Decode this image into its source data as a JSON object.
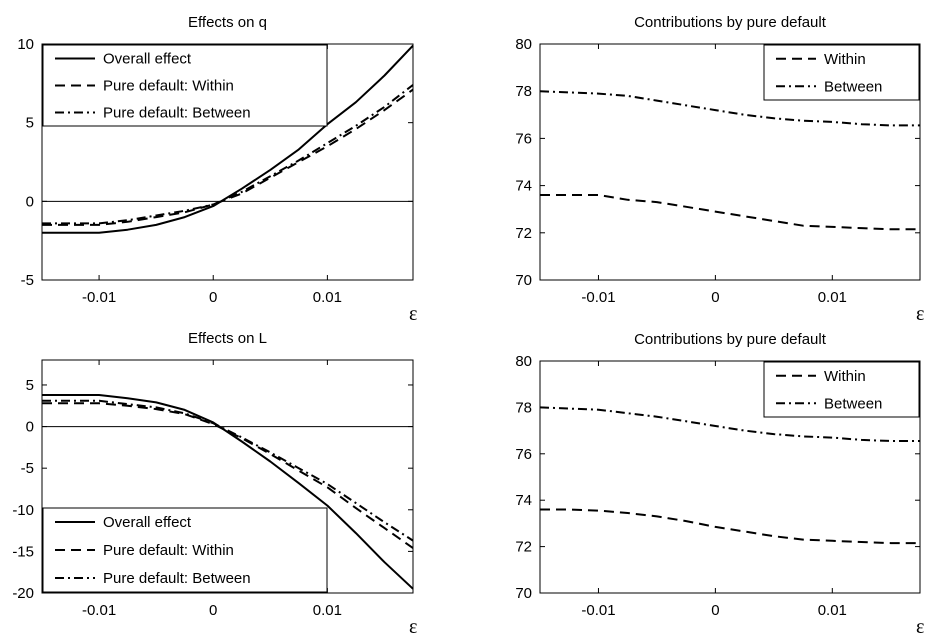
{
  "chart_data": [
    {
      "type": "line",
      "title": "Effects on q",
      "xlabel": "ε",
      "ylabel": "",
      "xlim": [
        -0.015,
        0.0175
      ],
      "ylim": [
        -5,
        10
      ],
      "xticks": [
        -0.01,
        0,
        0.01
      ],
      "xtick_labels": [
        "-0.01",
        "0",
        "0.01"
      ],
      "yticks": [
        -5,
        0,
        5,
        10
      ],
      "ytick_labels": [
        "-5",
        "0",
        "5",
        "10"
      ],
      "zero_line": true,
      "grid": false,
      "legend_position": "top-left",
      "series": [
        {
          "name": "Overall effect",
          "style": "solid",
          "x": [
            -0.015,
            -0.0125,
            -0.01,
            -0.0075,
            -0.005,
            -0.0025,
            0,
            0.0025,
            0.005,
            0.0075,
            0.01,
            0.0125,
            0.015,
            0.0175
          ],
          "y": [
            -2.0,
            -2.0,
            -2.0,
            -1.8,
            -1.5,
            -1.0,
            -0.3,
            0.8,
            2.0,
            3.3,
            4.9,
            6.3,
            8.0,
            9.9
          ]
        },
        {
          "name": "Pure default: Within",
          "style": "dash",
          "x": [
            -0.015,
            -0.0125,
            -0.01,
            -0.0075,
            -0.005,
            -0.0025,
            0,
            0.0025,
            0.005,
            0.0075,
            0.01,
            0.0125,
            0.015,
            0.0175
          ],
          "y": [
            -1.5,
            -1.5,
            -1.5,
            -1.3,
            -1.0,
            -0.7,
            -0.2,
            0.5,
            1.5,
            2.5,
            3.5,
            4.6,
            5.8,
            7.1
          ]
        },
        {
          "name": "Pure default: Between",
          "style": "dashdot",
          "x": [
            -0.015,
            -0.0125,
            -0.01,
            -0.0075,
            -0.005,
            -0.0025,
            0,
            0.0025,
            0.005,
            0.0075,
            0.01,
            0.0125,
            0.015,
            0.0175
          ],
          "y": [
            -1.4,
            -1.4,
            -1.4,
            -1.2,
            -0.9,
            -0.6,
            -0.2,
            0.6,
            1.6,
            2.6,
            3.7,
            4.8,
            6.0,
            7.4
          ]
        }
      ]
    },
    {
      "type": "line",
      "title": "Contributions by pure default",
      "xlabel": "ε",
      "ylabel": "",
      "xlim": [
        -0.015,
        0.0175
      ],
      "ylim": [
        70,
        80
      ],
      "xticks": [
        -0.01,
        0,
        0.01
      ],
      "xtick_labels": [
        "-0.01",
        "0",
        "0.01"
      ],
      "yticks": [
        70,
        72,
        74,
        76,
        78,
        80
      ],
      "ytick_labels": [
        "70",
        "72",
        "74",
        "76",
        "78",
        "80"
      ],
      "zero_line": false,
      "grid": false,
      "legend_position": "top-right",
      "series": [
        {
          "name": "Within",
          "style": "dash",
          "x": [
            -0.015,
            -0.0125,
            -0.01,
            -0.0075,
            -0.005,
            -0.0025,
            0,
            0.0025,
            0.005,
            0.0075,
            0.01,
            0.0125,
            0.015,
            0.0175
          ],
          "y": [
            73.6,
            73.6,
            73.6,
            73.4,
            73.3,
            73.1,
            72.9,
            72.7,
            72.5,
            72.3,
            72.25,
            72.2,
            72.15,
            72.15
          ]
        },
        {
          "name": "Between",
          "style": "dashdot",
          "x": [
            -0.015,
            -0.0125,
            -0.01,
            -0.0075,
            -0.005,
            -0.0025,
            0,
            0.0025,
            0.005,
            0.0075,
            0.01,
            0.0125,
            0.015,
            0.0175
          ],
          "y": [
            78.0,
            77.95,
            77.9,
            77.8,
            77.6,
            77.4,
            77.2,
            77.0,
            76.85,
            76.75,
            76.7,
            76.6,
            76.55,
            76.55
          ]
        }
      ]
    },
    {
      "type": "line",
      "title": "Effects on L",
      "xlabel": "ε",
      "ylabel": "",
      "xlim": [
        -0.015,
        0.0175
      ],
      "ylim": [
        -20,
        8
      ],
      "xticks": [
        -0.01,
        0,
        0.01
      ],
      "xtick_labels": [
        "-0.01",
        "0",
        "0.01"
      ],
      "yticks": [
        -20,
        -15,
        -10,
        -5,
        0,
        5
      ],
      "ytick_labels": [
        "-20",
        "-15",
        "-10",
        "-5",
        "0",
        "5"
      ],
      "zero_line": true,
      "grid": false,
      "legend_position": "bottom-left",
      "series": [
        {
          "name": "Overall effect",
          "style": "solid",
          "x": [
            -0.015,
            -0.0125,
            -0.01,
            -0.0075,
            -0.005,
            -0.0025,
            0,
            0.0025,
            0.005,
            0.0075,
            0.01,
            0.0125,
            0.015,
            0.0175
          ],
          "y": [
            3.8,
            3.8,
            3.8,
            3.4,
            2.9,
            2.0,
            0.5,
            -1.8,
            -4.2,
            -6.8,
            -9.5,
            -12.8,
            -16.3,
            -19.5
          ]
        },
        {
          "name": "Pure default: Within",
          "style": "dash",
          "x": [
            -0.015,
            -0.0125,
            -0.01,
            -0.0075,
            -0.005,
            -0.0025,
            0,
            0.0025,
            0.005,
            0.0075,
            0.01,
            0.0125,
            0.015,
            0.0175
          ],
          "y": [
            2.8,
            2.8,
            2.8,
            2.5,
            2.1,
            1.5,
            0.3,
            -1.4,
            -3.3,
            -5.3,
            -7.3,
            -9.8,
            -12.2,
            -14.6
          ]
        },
        {
          "name": "Pure default: Between",
          "style": "dashdot",
          "x": [
            -0.015,
            -0.0125,
            -0.01,
            -0.0075,
            -0.005,
            -0.0025,
            0,
            0.0025,
            0.005,
            0.0075,
            0.01,
            0.0125,
            0.015,
            0.0175
          ],
          "y": [
            3.1,
            3.1,
            3.1,
            2.7,
            2.3,
            1.6,
            0.4,
            -1.3,
            -3.1,
            -5.0,
            -6.9,
            -9.2,
            -11.5,
            -13.7
          ]
        }
      ]
    },
    {
      "type": "line",
      "title": "Contributions by pure default",
      "xlabel": "ε",
      "ylabel": "",
      "xlim": [
        -0.015,
        0.0175
      ],
      "ylim": [
        70,
        80
      ],
      "xticks": [
        -0.01,
        0,
        0.01
      ],
      "xtick_labels": [
        "-0.01",
        "0",
        "0.01"
      ],
      "yticks": [
        70,
        72,
        74,
        76,
        78,
        80
      ],
      "ytick_labels": [
        "70",
        "72",
        "74",
        "76",
        "78",
        "80"
      ],
      "zero_line": false,
      "grid": false,
      "legend_position": "top-right",
      "series": [
        {
          "name": "Within",
          "style": "dash",
          "x": [
            -0.015,
            -0.0125,
            -0.01,
            -0.0075,
            -0.005,
            -0.0025,
            0,
            0.0025,
            0.005,
            0.0075,
            0.01,
            0.0125,
            0.015,
            0.0175
          ],
          "y": [
            73.6,
            73.6,
            73.55,
            73.45,
            73.3,
            73.1,
            72.85,
            72.65,
            72.45,
            72.3,
            72.25,
            72.2,
            72.15,
            72.15
          ]
        },
        {
          "name": "Between",
          "style": "dashdot",
          "x": [
            -0.015,
            -0.0125,
            -0.01,
            -0.0075,
            -0.005,
            -0.0025,
            0,
            0.0025,
            0.005,
            0.0075,
            0.01,
            0.0125,
            0.015,
            0.0175
          ],
          "y": [
            78.0,
            77.95,
            77.9,
            77.75,
            77.6,
            77.4,
            77.2,
            77.0,
            76.85,
            76.75,
            76.7,
            76.6,
            76.55,
            76.55
          ]
        }
      ]
    }
  ]
}
